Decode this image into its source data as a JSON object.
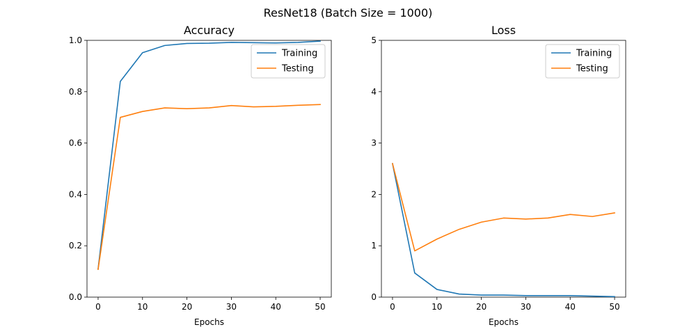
{
  "figure": {
    "suptitle": "ResNet18 (Batch Size = 1000)"
  },
  "colors": {
    "training": "#1f77b4",
    "testing": "#ff7f0e"
  },
  "chart_data": [
    {
      "type": "line",
      "title": "Accuracy",
      "xlabel": "Epochs",
      "ylabel": "",
      "xlim": [
        -2.5,
        52.5
      ],
      "ylim": [
        0,
        1
      ],
      "xticks": [
        0,
        10,
        20,
        30,
        40,
        50
      ],
      "xtick_labels": [
        "0",
        "10",
        "20",
        "30",
        "40",
        "50"
      ],
      "yticks": [
        0,
        0.2,
        0.4,
        0.6,
        0.8,
        1.0
      ],
      "ytick_labels": [
        "0.0",
        "0.2",
        "0.4",
        "0.6",
        "0.8",
        "1.0"
      ],
      "grid": false,
      "legend": "top-right",
      "x": [
        0,
        5,
        10,
        15,
        20,
        25,
        30,
        35,
        40,
        45,
        50
      ],
      "series": [
        {
          "name": "Training",
          "values": [
            0.11,
            0.84,
            0.952,
            0.98,
            0.988,
            0.989,
            0.992,
            0.991,
            0.99,
            0.992,
            0.997
          ]
        },
        {
          "name": "Testing",
          "values": [
            0.108,
            0.7,
            0.723,
            0.737,
            0.734,
            0.737,
            0.746,
            0.741,
            0.743,
            0.747,
            0.75
          ]
        }
      ]
    },
    {
      "type": "line",
      "title": "Loss",
      "xlabel": "Epochs",
      "ylabel": "",
      "xlim": [
        -2.5,
        52.5
      ],
      "ylim": [
        0,
        5
      ],
      "xticks": [
        0,
        10,
        20,
        30,
        40,
        50
      ],
      "xtick_labels": [
        "0",
        "10",
        "20",
        "30",
        "40",
        "50"
      ],
      "yticks": [
        0,
        1,
        2,
        3,
        4,
        5
      ],
      "ytick_labels": [
        "0",
        "1",
        "2",
        "3",
        "4",
        "5"
      ],
      "grid": false,
      "legend": "top-right",
      "x": [
        0,
        5,
        10,
        15,
        20,
        25,
        30,
        35,
        40,
        45,
        50
      ],
      "series": [
        {
          "name": "Training",
          "values": [
            2.6,
            0.47,
            0.15,
            0.06,
            0.04,
            0.04,
            0.03,
            0.03,
            0.03,
            0.02,
            0.01
          ]
        },
        {
          "name": "Testing",
          "values": [
            2.6,
            0.9,
            1.13,
            1.32,
            1.46,
            1.54,
            1.52,
            1.54,
            1.61,
            1.57,
            1.64
          ]
        }
      ]
    }
  ]
}
